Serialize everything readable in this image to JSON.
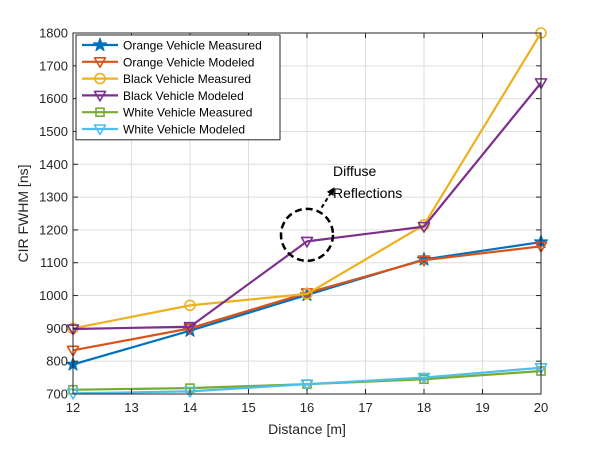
{
  "chart_data": {
    "type": "line",
    "xlabel": "Distance [m]",
    "ylabel": "CIR FWHM [ns]",
    "xlim": [
      12,
      20
    ],
    "ylim": [
      700,
      1800
    ],
    "xticks": [
      12,
      13,
      14,
      15,
      16,
      17,
      18,
      19,
      20
    ],
    "yticks": [
      700,
      800,
      900,
      1000,
      1100,
      1200,
      1300,
      1400,
      1500,
      1600,
      1700,
      1800
    ],
    "grid": true,
    "legend_position": "top-left",
    "series": [
      {
        "name": "Orange Vehicle Measured",
        "color": "#0072BD",
        "marker": "star",
        "x": [
          12,
          14,
          16,
          18,
          20
        ],
        "y": [
          790,
          893,
          1002,
          1110,
          1163
        ]
      },
      {
        "name": "Orange Vehicle Modeled",
        "color": "#D95319",
        "marker": "triangle-down",
        "x": [
          12,
          14,
          16,
          18,
          20
        ],
        "y": [
          833,
          900,
          1008,
          1108,
          1150
        ]
      },
      {
        "name": "Black Vehicle Measured",
        "color": "#EDB120",
        "marker": "circle",
        "x": [
          12,
          14,
          16,
          18,
          20
        ],
        "y": [
          900,
          970,
          1005,
          1215,
          1800
        ]
      },
      {
        "name": "Black Vehicle Modeled",
        "color": "#7E2F8E",
        "marker": "triangle-down",
        "x": [
          12,
          14,
          16,
          18,
          20
        ],
        "y": [
          898,
          905,
          1165,
          1210,
          1648
        ]
      },
      {
        "name": "White Vehicle Measured",
        "color": "#77AC30",
        "marker": "square",
        "x": [
          12,
          14,
          16,
          18,
          20
        ],
        "y": [
          713,
          718,
          730,
          745,
          770
        ]
      },
      {
        "name": "White Vehicle Modeled",
        "color": "#4DBEEE",
        "marker": "triangle-down",
        "x": [
          12,
          14,
          16,
          18,
          20
        ],
        "y": [
          702,
          708,
          730,
          750,
          780
        ]
      }
    ],
    "annotation": {
      "lines": [
        "Diffuse",
        "Reflections"
      ],
      "circle_center": [
        16,
        1185
      ],
      "arrow_from": [
        16.25,
        1268
      ],
      "arrow_to": [
        16.45,
        1325
      ]
    }
  }
}
